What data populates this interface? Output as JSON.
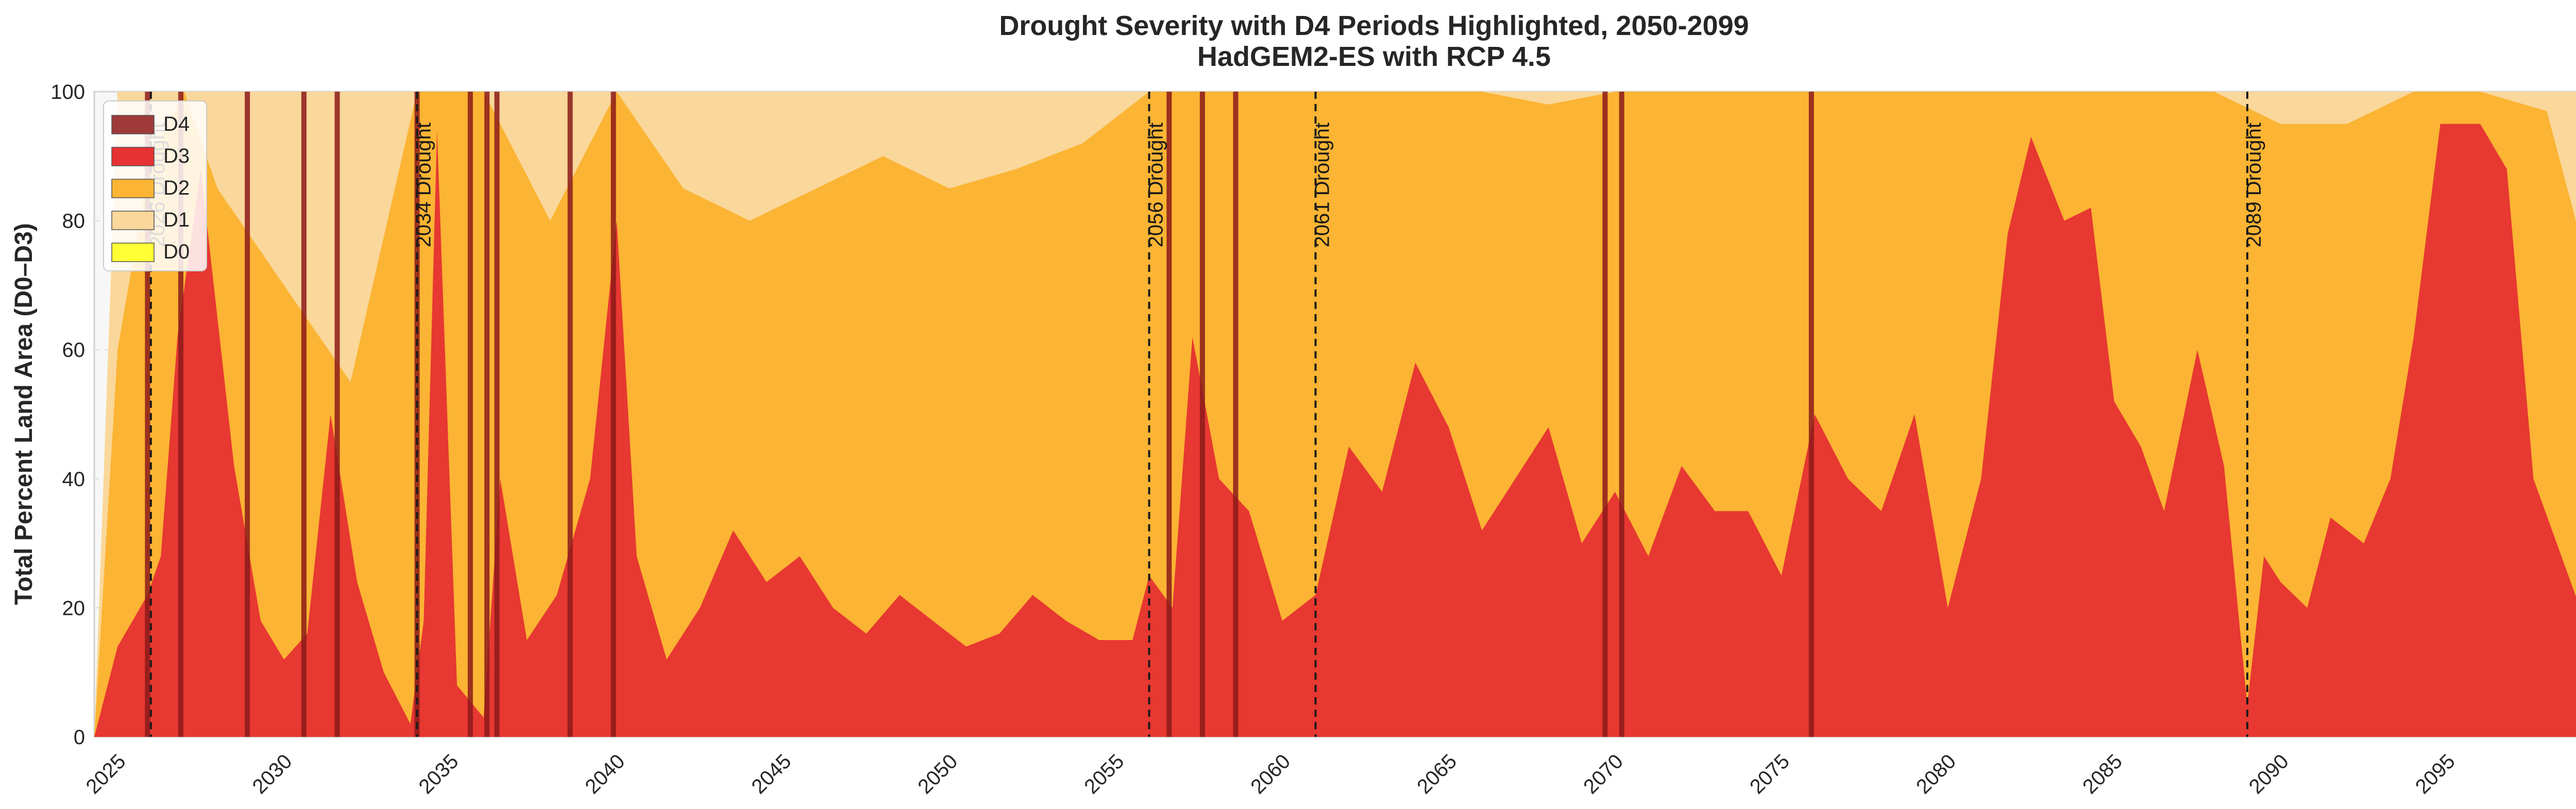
{
  "chart_data": {
    "type": "area",
    "title": "Drought Severity with D4 Periods Highlighted, 2050-2099",
    "subtitle": "HadGEM2-ES with RCP 4.5",
    "xlabel": "",
    "ylabel": "Total Percent Land Area (D0–D3)",
    "xlim": [
      2024.3,
      2101.2
    ],
    "ylim": [
      0,
      100
    ],
    "x_ticks": [
      2025,
      2030,
      2035,
      2040,
      2045,
      2050,
      2055,
      2060,
      2065,
      2070,
      2075,
      2080,
      2085,
      2090,
      2095,
      2100
    ],
    "y_ticks": [
      0,
      20,
      40,
      60,
      80,
      100
    ],
    "grid": true,
    "legend_position": "top-left",
    "legend": [
      {
        "label": "D4",
        "color": "#9e3a3a"
      },
      {
        "label": "D3",
        "color": "#e63232"
      },
      {
        "label": "D2",
        "color": "#fbb433"
      },
      {
        "label": "D1",
        "color": "#fad79a"
      },
      {
        "label": "D0",
        "color": "#ffff33"
      }
    ],
    "colors": {
      "D0": "#ffff33",
      "D1": "#fad79a",
      "D2": "#fbb433",
      "D3": "#e63232",
      "D4_band": "#8b1a1a",
      "background": "#f7f7f7"
    },
    "series": [
      {
        "name": "D3",
        "x": [
          2024.3,
          2025,
          2025.9,
          2026.3,
          2026.8,
          2027.5,
          2028.5,
          2029.3,
          2030,
          2030.7,
          2031.4,
          2032.2,
          2033.0,
          2033.8,
          2034.2,
          2034.6,
          2035.2,
          2036.0,
          2036.5,
          2037.3,
          2038.2,
          2039.2,
          2040.0,
          2040.6,
          2041.5,
          2042.5,
          2043.5,
          2044.5,
          2045.5,
          2046.5,
          2047.5,
          2048.5,
          2049.5,
          2050.5,
          2051.5,
          2052.5,
          2053.5,
          2054.5,
          2055.5,
          2056.0,
          2056.7,
          2057.3,
          2058.1,
          2059.0,
          2060.0,
          2061.0,
          2062.0,
          2063.0,
          2064.0,
          2065.0,
          2066.0,
          2067.0,
          2068.0,
          2069.0,
          2070.0,
          2071.0,
          2072.0,
          2073.0,
          2074.0,
          2075.0,
          2076.0,
          2077.0,
          2078.0,
          2079.0,
          2080.0,
          2081.0,
          2081.8,
          2082.5,
          2083.5,
          2084.3,
          2085.0,
          2085.8,
          2086.5,
          2087.5,
          2088.3,
          2089.0,
          2089.5,
          2090.0,
          2090.8,
          2091.5,
          2092.5,
          2093.3,
          2094.0,
          2094.8,
          2095.5,
          2096.0,
          2096.8,
          2097.6,
          2098.3,
          2099.0,
          2099.6,
          2099.9
        ],
        "values": [
          0,
          14,
          22,
          28,
          62,
          88,
          42,
          18,
          12,
          16,
          50,
          24,
          10,
          2,
          18,
          94,
          8,
          3,
          40,
          15,
          22,
          40,
          80,
          28,
          12,
          20,
          32,
          24,
          28,
          20,
          16,
          22,
          18,
          14,
          16,
          22,
          18,
          15,
          15,
          25,
          20,
          62,
          40,
          35,
          18,
          22,
          45,
          38,
          58,
          48,
          32,
          40,
          48,
          30,
          38,
          28,
          42,
          35,
          35,
          25,
          50,
          40,
          35,
          50,
          20,
          40,
          78,
          93,
          80,
          82,
          52,
          45,
          35,
          60,
          42,
          5,
          28,
          24,
          20,
          34,
          30,
          40,
          62,
          95,
          95,
          95,
          88,
          40,
          30,
          20,
          20,
          18
        ]
      },
      {
        "name": "D2",
        "x": [
          2024.3,
          2025,
          2026,
          2027,
          2028,
          2030,
          2032,
          2034,
          2035,
          2036,
          2038,
          2040,
          2042,
          2044,
          2046,
          2048,
          2050,
          2052,
          2054,
          2056,
          2058,
          2060,
          2062,
          2064,
          2066,
          2068,
          2070,
          2072,
          2074,
          2076,
          2078,
          2080,
          2082,
          2084,
          2086,
          2088,
          2090,
          2092,
          2094,
          2096,
          2098,
          2099.9
        ],
        "values": [
          0,
          60,
          90,
          100,
          85,
          70,
          55,
          100,
          100,
          100,
          80,
          100,
          85,
          80,
          85,
          90,
          85,
          88,
          92,
          100,
          100,
          100,
          100,
          100,
          100,
          98,
          100,
          100,
          100,
          100,
          100,
          100,
          100,
          100,
          100,
          100,
          95,
          95,
          100,
          100,
          97,
          60
        ]
      },
      {
        "name": "D1",
        "x": [
          2024.3,
          2025,
          2030,
          2035,
          2040,
          2045,
          2050,
          2055,
          2060,
          2065,
          2070,
          2075,
          2080,
          2085,
          2090,
          2095,
          2099.9
        ],
        "values": [
          0,
          100,
          100,
          100,
          100,
          100,
          100,
          100,
          100,
          100,
          100,
          100,
          100,
          100,
          100,
          100,
          100
        ]
      },
      {
        "name": "D0",
        "x": [
          2024.3,
          2025,
          2030,
          2035,
          2040,
          2045,
          2050,
          2055,
          2060,
          2065,
          2070,
          2075,
          2080,
          2085,
          2090,
          2095,
          2099.9
        ],
        "values": [
          0,
          100,
          100,
          100,
          100,
          100,
          100,
          100,
          100,
          100,
          100,
          100,
          100,
          100,
          100,
          100,
          100
        ]
      }
    ],
    "d4_periods": [
      2025.9,
      2026.9,
      2028.9,
      2030.6,
      2031.6,
      2034.0,
      2035.6,
      2036.1,
      2036.4,
      2038.6,
      2039.9,
      2056.6,
      2057.6,
      2058.6,
      2069.7,
      2070.2,
      2075.9
    ],
    "drought_events": [
      {
        "x": 2026.0,
        "label": "2026 Drought"
      },
      {
        "x": 2034.0,
        "label": "2034 Drought"
      },
      {
        "x": 2056.0,
        "label": "2056 Drought"
      },
      {
        "x": 2061.0,
        "label": "2061 Drought"
      },
      {
        "x": 2089.0,
        "label": "2089 Drought"
      }
    ]
  }
}
